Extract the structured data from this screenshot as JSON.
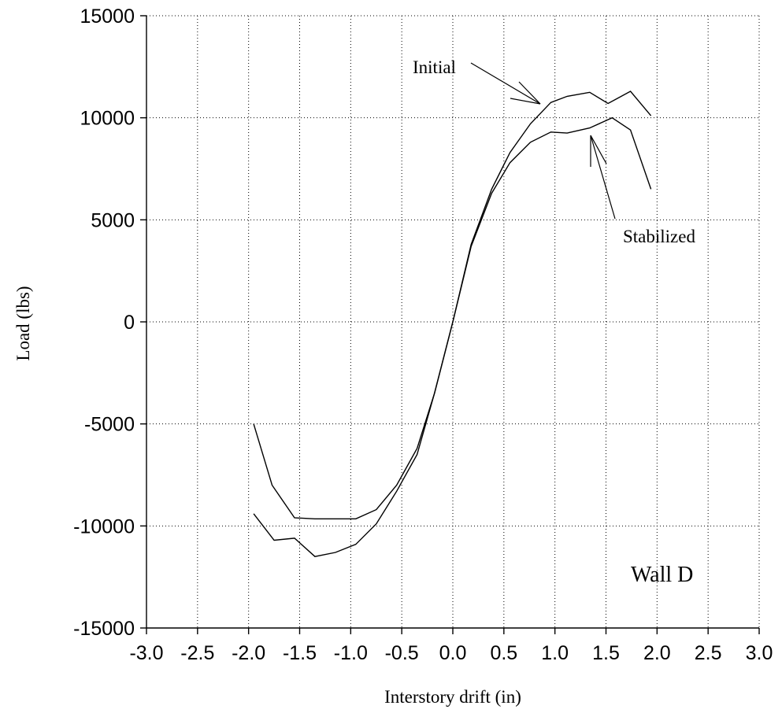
{
  "chart_data": {
    "type": "line",
    "title": "",
    "xlabel": "Interstory drift (in)",
    "ylabel": "Load (lbs)",
    "xlim": [
      -3.0,
      3.0
    ],
    "ylim": [
      -15000,
      15000
    ],
    "x_ticks": [
      "-3.0",
      "-2.5",
      "-2.0",
      "-1.5",
      "-1.0",
      "-0.5",
      "0.0",
      "0.5",
      "1.0",
      "1.5",
      "2.0",
      "2.5",
      "3.0"
    ],
    "y_ticks": [
      "15000",
      "10000",
      "5000",
      "0",
      "-5000",
      "-10000",
      "-15000"
    ],
    "grid": true,
    "legend": "none",
    "annotations": [
      "Initial",
      "Stabilized",
      "Wall D"
    ],
    "series": [
      {
        "name": "Initial",
        "x": [
          -1.95,
          -1.75,
          -1.55,
          -1.35,
          -1.15,
          -0.95,
          -0.75,
          -0.55,
          -0.35,
          -0.18,
          0.0,
          0.18,
          0.38,
          0.56,
          0.76,
          0.96,
          1.12,
          1.34,
          1.52,
          1.74,
          1.94
        ],
        "y": [
          -9400,
          -10700,
          -10600,
          -11500,
          -11300,
          -10900,
          -9900,
          -8300,
          -6500,
          -3500,
          0,
          3800,
          6500,
          8300,
          9700,
          10750,
          11050,
          11250,
          10700,
          11300,
          10100
        ]
      },
      {
        "name": "Stabilized",
        "x": [
          -1.95,
          -1.77,
          -1.55,
          -1.35,
          -1.15,
          -0.95,
          -0.75,
          -0.55,
          -0.35,
          -0.18,
          0.0,
          0.18,
          0.38,
          0.56,
          0.76,
          0.96,
          1.12,
          1.34,
          1.56,
          1.74,
          1.94
        ],
        "y": [
          -5000,
          -8000,
          -9600,
          -9650,
          -9650,
          -9650,
          -9200,
          -8000,
          -6200,
          -3500,
          0,
          3700,
          6300,
          7800,
          8800,
          9300,
          9250,
          9500,
          10000,
          9400,
          6500
        ]
      }
    ]
  }
}
